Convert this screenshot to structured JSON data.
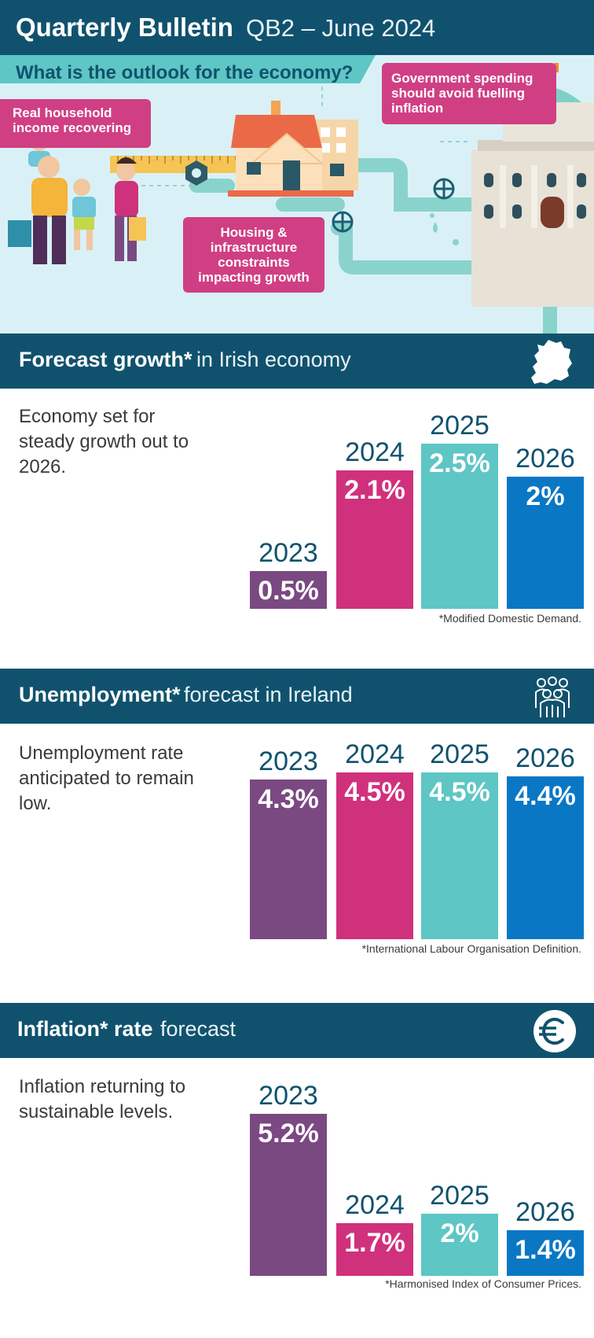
{
  "header": {
    "title": "Quarterly Bulletin",
    "subtitle": "QB2 – June 2024"
  },
  "hero": {
    "question": "What is the outlook for the economy?",
    "callouts": [
      "Real household income recovering",
      "Government spending should avoid fuelling inflation",
      "Housing & infrastructure constraints impacting growth"
    ]
  },
  "colors": {
    "navy": "#10526e",
    "purple": "#7a4981",
    "magenta": "#d0317c",
    "teal": "#5ec6c4",
    "blue": "#0a77c5"
  },
  "sections": [
    {
      "bold": "Forecast growth*",
      "light": " in Irish economy",
      "description": "Economy set for steady growth out to 2026.",
      "footnote": "*Modified Domestic Demand.",
      "icon": "ireland-map-icon"
    },
    {
      "bold": "Unemployment*",
      "light": " forecast in Ireland",
      "description": "Unemployment rate anticipated to remain low.",
      "footnote": "*International Labour Organisation Definition.",
      "icon": "people-group-icon"
    },
    {
      "bold": "Inflation* rate",
      "light": " forecast",
      "description": "Inflation returning to sustainable levels.",
      "footnote": "*Harmonised Index of Consumer Prices.",
      "icon": "euro-icon"
    }
  ],
  "chart_data": [
    {
      "type": "bar",
      "categories": [
        "2023",
        "2024",
        "2025",
        "2026"
      ],
      "values": [
        0.5,
        2.1,
        2.5,
        2.0
      ],
      "labels": [
        "0.5%",
        "2.1%",
        "2.5%",
        "2%"
      ],
      "ylim": [
        0,
        2.5
      ]
    },
    {
      "type": "bar",
      "categories": [
        "2023",
        "2024",
        "2025",
        "2026"
      ],
      "values": [
        4.3,
        4.5,
        4.5,
        4.4
      ],
      "labels": [
        "4.3%",
        "4.5%",
        "4.5%",
        "4.4%"
      ],
      "ylim": [
        0,
        4.5
      ]
    },
    {
      "type": "bar",
      "categories": [
        "2023",
        "2024",
        "2025",
        "2026"
      ],
      "values": [
        5.2,
        1.7,
        2.0,
        1.4
      ],
      "labels": [
        "5.2%",
        "1.7%",
        "2%",
        "1.4%"
      ],
      "ylim": [
        0,
        5.2
      ]
    }
  ]
}
